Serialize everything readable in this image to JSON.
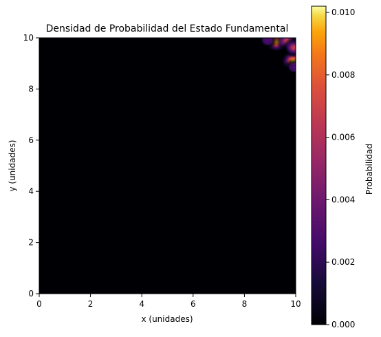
{
  "chart_data": {
    "type": "heatmap",
    "title": "Densidad de Probabilidad del Estado Fundamental",
    "xlabel": "x (unidades)",
    "ylabel": "y (unidades)",
    "xlim": [
      0,
      10
    ],
    "ylim": [
      0,
      10
    ],
    "xticks": [
      "0",
      "2",
      "4",
      "6",
      "8",
      "10"
    ],
    "yticks": [
      "0",
      "2",
      "4",
      "6",
      "8",
      "10"
    ],
    "grid": false,
    "colormap": "inferno",
    "colorbar": {
      "label": "Probabilidad",
      "range": [
        0,
        0.0102
      ],
      "ticks": [
        "0.000",
        "0.002",
        "0.004",
        "0.006",
        "0.008",
        "0.010"
      ]
    },
    "peaks": [
      {
        "x": 9.25,
        "y": 9.85,
        "value": 0.0102
      },
      {
        "x": 9.9,
        "y": 9.1,
        "value": 0.0102
      },
      {
        "x": 9.65,
        "y": 9.88,
        "value": 0.0075
      },
      {
        "x": 9.93,
        "y": 9.62,
        "value": 0.0075
      },
      {
        "x": 8.9,
        "y": 9.9,
        "value": 0.004
      },
      {
        "x": 9.95,
        "y": 8.85,
        "value": 0.004
      }
    ],
    "background_value": 0.0
  }
}
